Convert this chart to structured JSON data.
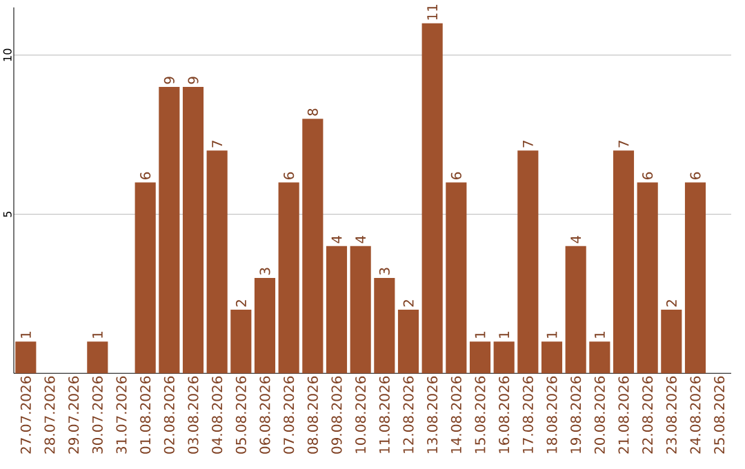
{
  "chart_data": {
    "type": "bar",
    "categories": [
      "27.07.2026",
      "28.07.2026",
      "29.07.2026",
      "30.07.2026",
      "31.07.2026",
      "01.08.2026",
      "02.08.2026",
      "03.08.2026",
      "04.08.2026",
      "05.08.2026",
      "06.08.2026",
      "07.08.2026",
      "08.08.2026",
      "09.08.2026",
      "10.08.2026",
      "11.08.2026",
      "12.08.2026",
      "13.08.2026",
      "14.08.2026",
      "15.08.2026",
      "16.08.2026",
      "17.08.2026",
      "18.08.2026",
      "19.08.2026",
      "20.08.2026",
      "21.08.2026",
      "22.08.2026",
      "23.08.2026",
      "24.08.2026",
      "25.08.2026"
    ],
    "values": [
      1,
      0,
      0,
      1,
      0,
      6,
      9,
      9,
      7,
      2,
      3,
      6,
      8,
      4,
      4,
      3,
      2,
      11,
      6,
      1,
      1,
      7,
      1,
      4,
      1,
      7,
      6,
      2,
      6,
      0
    ],
    "value_labels": [
      "1",
      null,
      null,
      "1",
      null,
      "6",
      "9",
      "9",
      "7",
      "2",
      "3",
      "6",
      "8",
      "4",
      "4",
      "3",
      "2",
      "11",
      "6",
      "1",
      "1",
      "7",
      "1",
      "4",
      "1",
      "7",
      "6",
      "2",
      "6",
      null
    ],
    "color": "#a0522d",
    "ylim": [
      0,
      11.5
    ],
    "yticks": [
      5,
      10
    ],
    "grid": "y"
  }
}
